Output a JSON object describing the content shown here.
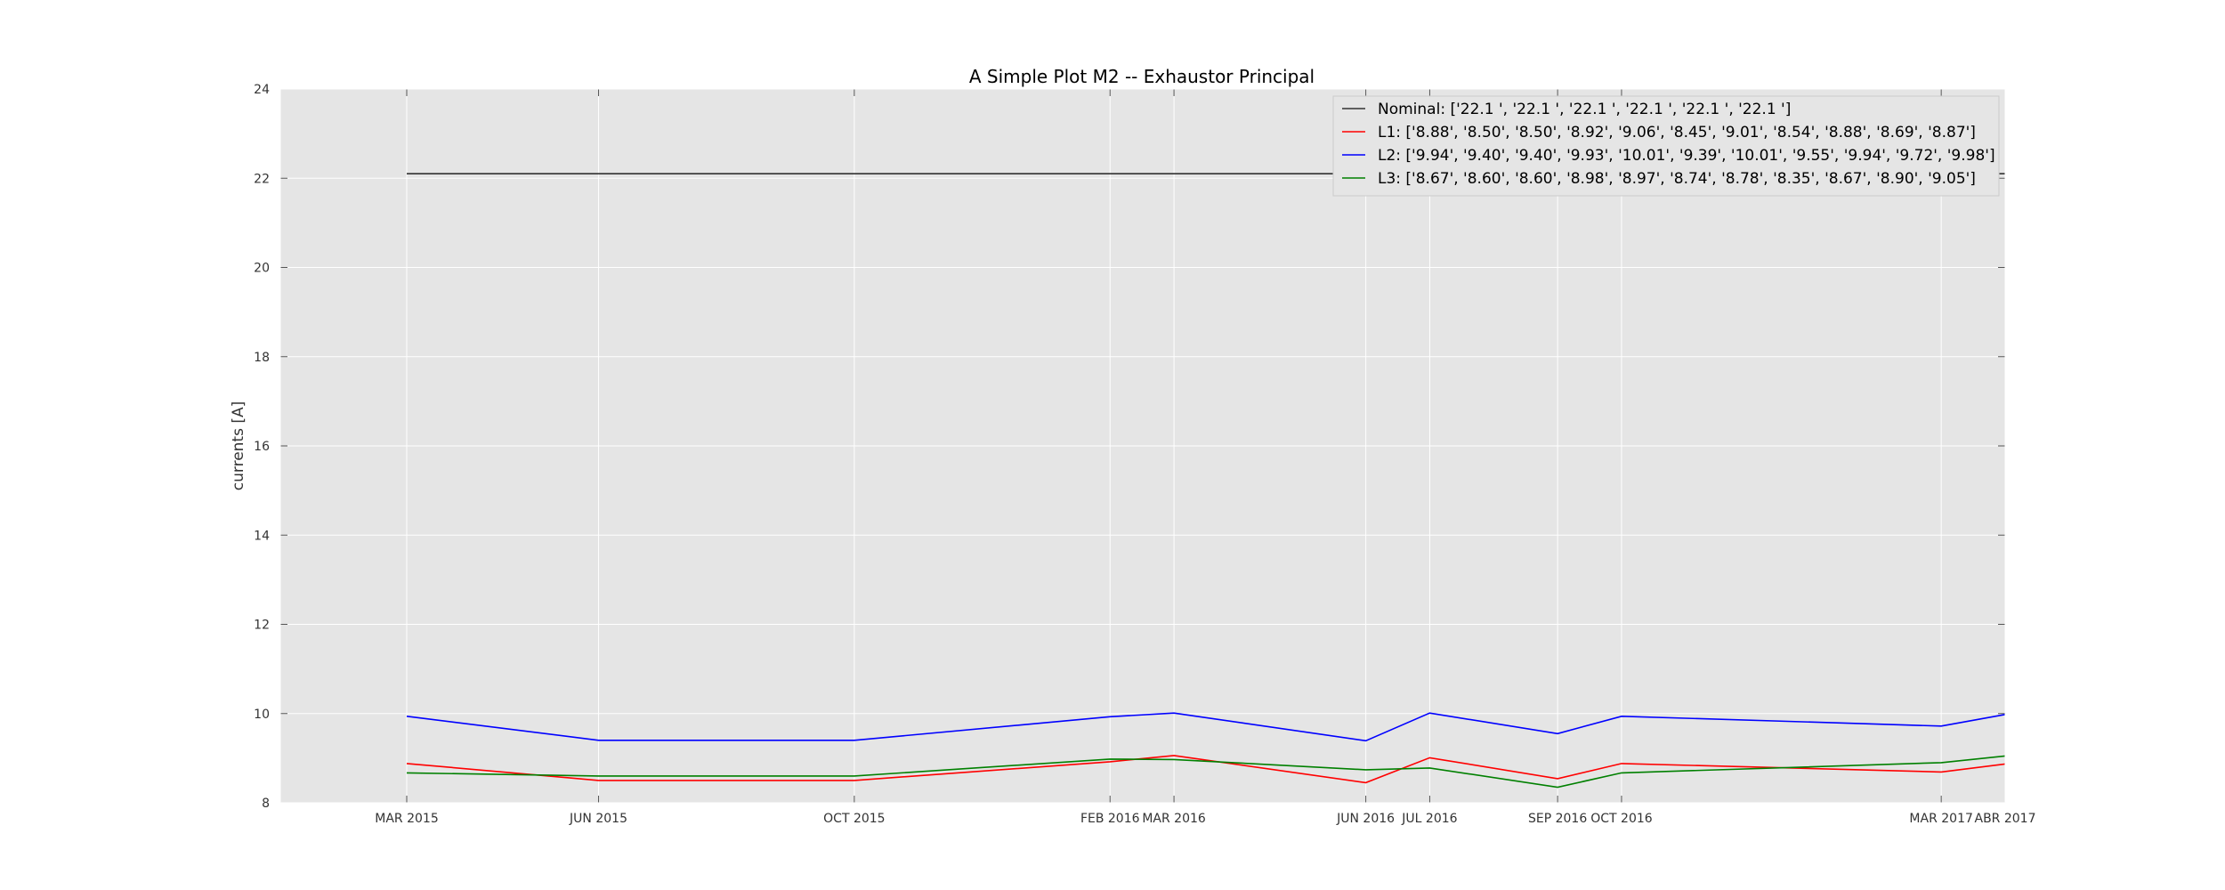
{
  "chart_data": {
    "type": "line",
    "title": "A Simple Plot M2 -- Exhaustor Principal",
    "xlabel": "",
    "ylabel": "currents [A]",
    "x": [
      "2015-03",
      "2015-06",
      "2015-10",
      "2016-02",
      "2016-03",
      "2016-06",
      "2016-07",
      "2016-09",
      "2016-10",
      "2017-03",
      "2017-04"
    ],
    "x_tick_labels": [
      "MAR 2015",
      "JUN 2015",
      "OCT 2015",
      "FEB 2016",
      "MAR 2016",
      "JUN 2016",
      "JUL 2016",
      "SEP 2016",
      "OCT 2016",
      "MAR 2017",
      "ABR 2017"
    ],
    "ylim": [
      8,
      24
    ],
    "yticks": [
      8,
      10,
      12,
      14,
      16,
      18,
      20,
      22,
      24
    ],
    "grid": true,
    "legend_position": "top-right",
    "series": [
      {
        "name": "Nominal",
        "legend_label": "Nominal:  ['22.1 ', '22.1 ', '22.1 ', '22.1 ', '22.1 ', '22.1 ']",
        "color": "#333333",
        "values": [
          22.1,
          22.1,
          22.1,
          22.1,
          22.1,
          22.1,
          22.1,
          22.1,
          22.1,
          22.1,
          22.1
        ]
      },
      {
        "name": "L1",
        "legend_label": "L1: ['8.88', '8.50', '8.50', '8.92', '9.06', '8.45', '9.01', '8.54', '8.88', '8.69', '8.87']",
        "color": "#ff0000",
        "values": [
          8.88,
          8.5,
          8.5,
          8.92,
          9.06,
          8.45,
          9.01,
          8.54,
          8.88,
          8.69,
          8.87
        ]
      },
      {
        "name": "L2",
        "legend_label": "L2:  ['9.94', '9.40', '9.40', '9.93', '10.01', '9.39', '10.01', '9.55', '9.94', '9.72', '9.98']",
        "color": "#0000ff",
        "values": [
          9.94,
          9.4,
          9.4,
          9.93,
          10.01,
          9.39,
          10.01,
          9.55,
          9.94,
          9.72,
          9.98
        ]
      },
      {
        "name": "L3",
        "legend_label": "L3: ['8.67', '8.60', '8.60', '8.98', '8.97', '8.74', '8.78', '8.35', '8.67', '8.90', '9.05']",
        "color": "#008000",
        "values": [
          8.67,
          8.6,
          8.6,
          8.98,
          8.97,
          8.74,
          8.78,
          8.35,
          8.67,
          8.9,
          9.05
        ]
      }
    ]
  }
}
